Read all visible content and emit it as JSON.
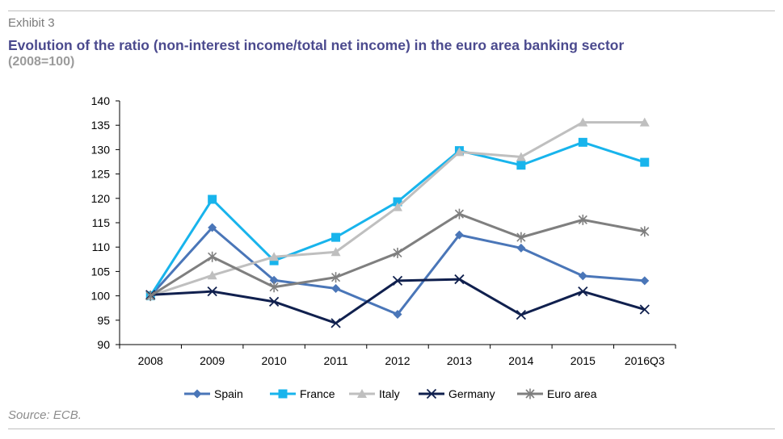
{
  "header": {
    "exhibit": "Exhibit 3",
    "title": "Evolution of the ratio (non-interest income/total net income) in the euro area banking sector",
    "subtitle": "(2008=100)"
  },
  "footer": {
    "source": "Source: ECB."
  },
  "chart_data": {
    "type": "line",
    "title": "Evolution of the ratio (non-interest income/total net income) in the euro area banking sector",
    "subtitle": "(2008=100)",
    "xlabel": "",
    "ylabel": "",
    "categories": [
      "2008",
      "2009",
      "2010",
      "2011",
      "2012",
      "2013",
      "2014",
      "2015",
      "2016Q3"
    ],
    "ylim": [
      90,
      140
    ],
    "yticks": [
      90,
      95,
      100,
      105,
      110,
      115,
      120,
      125,
      130,
      135,
      140
    ],
    "grid": false,
    "legend_position": "bottom",
    "series": [
      {
        "name": "Spain",
        "color": "#4a76b8",
        "marker": "diamond",
        "values": [
          100,
          114,
          103.2,
          101.5,
          96.2,
          112.5,
          109.8,
          104.1,
          103.1
        ]
      },
      {
        "name": "France",
        "color": "#18b4ec",
        "marker": "square",
        "values": [
          100,
          119.8,
          107.2,
          112,
          119.3,
          129.8,
          126.8,
          131.5,
          127.4
        ]
      },
      {
        "name": "Italy",
        "color": "#bfbfbf",
        "marker": "triangle",
        "values": [
          100,
          104.2,
          108,
          109,
          118.2,
          129.5,
          128.5,
          135.6,
          135.6
        ]
      },
      {
        "name": "Germany",
        "color": "#10204e",
        "marker": "x",
        "values": [
          100.2,
          100.9,
          98.8,
          94.4,
          103.1,
          103.4,
          96.1,
          100.9,
          97.2
        ]
      },
      {
        "name": "Euro area",
        "color": "#7f7f7f",
        "marker": "star",
        "values": [
          100,
          108,
          101.8,
          103.8,
          108.8,
          116.8,
          112,
          115.6,
          113.2
        ]
      }
    ]
  }
}
